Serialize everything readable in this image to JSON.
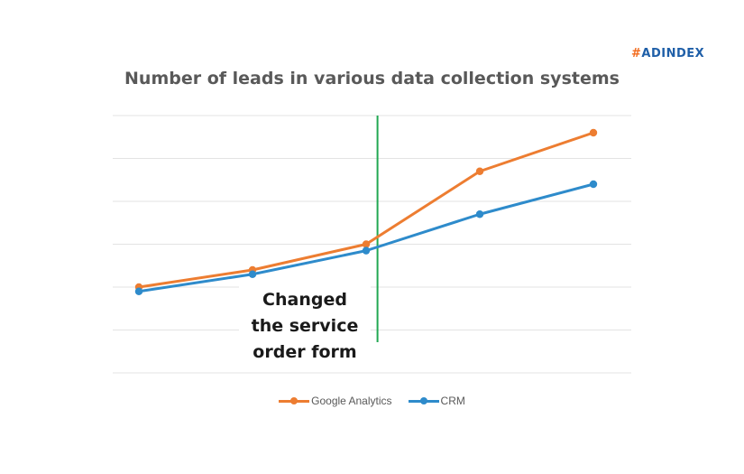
{
  "brand": {
    "hash": "#",
    "word": "ADINDEX",
    "hash_color": "#f26b1d",
    "word_color": "#1f5fa8"
  },
  "chart_data": {
    "type": "line",
    "title": "Number of leads in various data collection systems",
    "xlabel": "",
    "ylabel": "",
    "x": [
      1,
      2,
      3,
      4,
      5
    ],
    "ylim": [
      0,
      6
    ],
    "grid": true,
    "series": [
      {
        "name": "Google Analytics",
        "color": "#ed7d31",
        "values": [
          2.0,
          2.4,
          3.0,
          4.7,
          5.6
        ]
      },
      {
        "name": "CRM",
        "color": "#2e8bcb",
        "values": [
          1.9,
          2.3,
          2.85,
          3.7,
          4.4
        ]
      }
    ],
    "event_marker": {
      "color": "#21a852",
      "position_between": [
        3,
        4
      ]
    },
    "annotation": [
      "Changed",
      "the service",
      "order form"
    ],
    "legend_placement": "bottom"
  }
}
